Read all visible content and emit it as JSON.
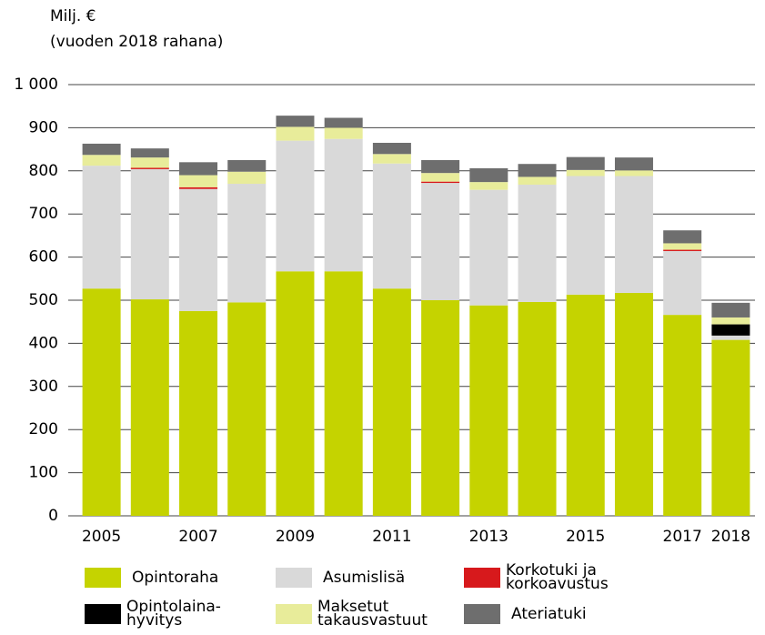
{
  "chart_data": {
    "type": "stacked_bar",
    "y_label": [
      "Milj. €",
      "(vuoden 2018 rahana)"
    ],
    "categories": [
      "2005",
      null,
      "2007",
      null,
      "2009",
      null,
      "2011",
      null,
      "2013",
      null,
      "2015",
      null,
      "2017",
      "2018"
    ],
    "series": [
      {
        "name": "Opintoraha",
        "color": "#c5d300",
        "values": [
          527,
          502,
          475,
          495,
          567,
          567,
          527,
          500,
          488,
          496,
          513,
          517,
          466,
          408
        ]
      },
      {
        "name": "Asumislisä",
        "color": "#d9d9d9",
        "values": [
          285,
          302,
          283,
          275,
          303,
          307,
          290,
          272,
          268,
          272,
          275,
          271,
          148,
          10
        ]
      },
      {
        "name": "Opintolaina-\nhyvitys",
        "color": "#000000",
        "values": [
          0,
          0,
          0,
          0,
          0,
          0,
          0,
          0,
          0,
          0,
          0,
          0,
          0,
          26
        ]
      },
      {
        "name": "Korkotuki ja\nkorkoavustus",
        "color": "#d7191c",
        "values": [
          0,
          3,
          4,
          0,
          0,
          0,
          0,
          3,
          0,
          0,
          0,
          0,
          3,
          0
        ]
      },
      {
        "name": "Maksetut\ntakausvastuut",
        "color": "#e8ec9a",
        "values": [
          25,
          24,
          28,
          28,
          32,
          26,
          22,
          20,
          18,
          18,
          14,
          13,
          15,
          16
        ]
      },
      {
        "name": "Ateriatuki",
        "color": "#6e6e6e",
        "values": [
          26,
          21,
          30,
          27,
          26,
          23,
          26,
          30,
          32,
          30,
          30,
          30,
          30,
          34
        ]
      }
    ],
    "ylim": [
      0,
      1000
    ],
    "yticks": [
      0,
      100,
      200,
      300,
      400,
      500,
      600,
      700,
      800,
      900,
      {
        "value": 1000,
        "label": "1 000"
      }
    ],
    "grid": true
  }
}
